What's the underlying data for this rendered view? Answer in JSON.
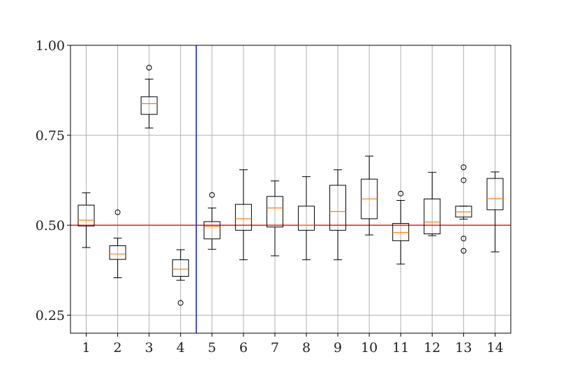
{
  "chart_data": {
    "type": "box",
    "categories": [
      "1",
      "2",
      "3",
      "4",
      "5",
      "6",
      "7",
      "8",
      "9",
      "10",
      "11",
      "12",
      "13",
      "14"
    ],
    "ylim": [
      0.2,
      1.0
    ],
    "xlim": [
      0.5,
      14.5
    ],
    "yticks": [
      0.25,
      0.5,
      0.75,
      1.0
    ],
    "ytick_labels": [
      "0.25",
      "0.50",
      "0.75",
      "1.00"
    ],
    "grid": true,
    "boxes": [
      {
        "q1": 0.498,
        "median": 0.514,
        "q3": 0.556,
        "whislo": 0.438,
        "whishi": 0.59,
        "fliers": []
      },
      {
        "q1": 0.405,
        "median": 0.42,
        "q3": 0.443,
        "whislo": 0.354,
        "whishi": 0.464,
        "fliers": [
          0.536
        ]
      },
      {
        "q1": 0.808,
        "median": 0.838,
        "q3": 0.857,
        "whislo": 0.77,
        "whishi": 0.906,
        "fliers": [
          0.938
        ]
      },
      {
        "q1": 0.358,
        "median": 0.378,
        "q3": 0.404,
        "whislo": 0.347,
        "whishi": 0.432,
        "fliers": [
          0.284
        ]
      },
      {
        "q1": 0.462,
        "median": 0.497,
        "q3": 0.51,
        "whislo": 0.433,
        "whishi": 0.548,
        "fliers": [
          0.584
        ]
      },
      {
        "q1": 0.486,
        "median": 0.518,
        "q3": 0.558,
        "whislo": 0.404,
        "whishi": 0.654,
        "fliers": []
      },
      {
        "q1": 0.495,
        "median": 0.548,
        "q3": 0.58,
        "whislo": 0.415,
        "whishi": 0.623,
        "fliers": []
      },
      {
        "q1": 0.486,
        "median": 0.5,
        "q3": 0.553,
        "whislo": 0.404,
        "whishi": 0.635,
        "fliers": []
      },
      {
        "q1": 0.486,
        "median": 0.538,
        "q3": 0.611,
        "whislo": 0.404,
        "whishi": 0.654,
        "fliers": []
      },
      {
        "q1": 0.518,
        "median": 0.573,
        "q3": 0.628,
        "whislo": 0.473,
        "whishi": 0.692,
        "fliers": []
      },
      {
        "q1": 0.457,
        "median": 0.48,
        "q3": 0.505,
        "whislo": 0.392,
        "whishi": 0.569,
        "fliers": [
          0.588
        ]
      },
      {
        "q1": 0.476,
        "median": 0.509,
        "q3": 0.573,
        "whislo": 0.471,
        "whishi": 0.647,
        "fliers": []
      },
      {
        "q1": 0.523,
        "median": 0.537,
        "q3": 0.553,
        "whislo": 0.517,
        "whishi": 0.553,
        "fliers": [
          0.661,
          0.625,
          0.463,
          0.429
        ]
      },
      {
        "q1": 0.543,
        "median": 0.574,
        "q3": 0.63,
        "whislo": 0.426,
        "whishi": 0.648,
        "fliers": []
      }
    ],
    "reference_lines": [
      {
        "orientation": "horizontal",
        "value": 0.5,
        "color": "#e8231a"
      },
      {
        "orientation": "vertical",
        "value": 4.5,
        "color": "#1f1fcc"
      }
    ],
    "colors": {
      "median": "#ff7f0e",
      "box": "#000000",
      "grid": "#b0b0b0"
    }
  }
}
